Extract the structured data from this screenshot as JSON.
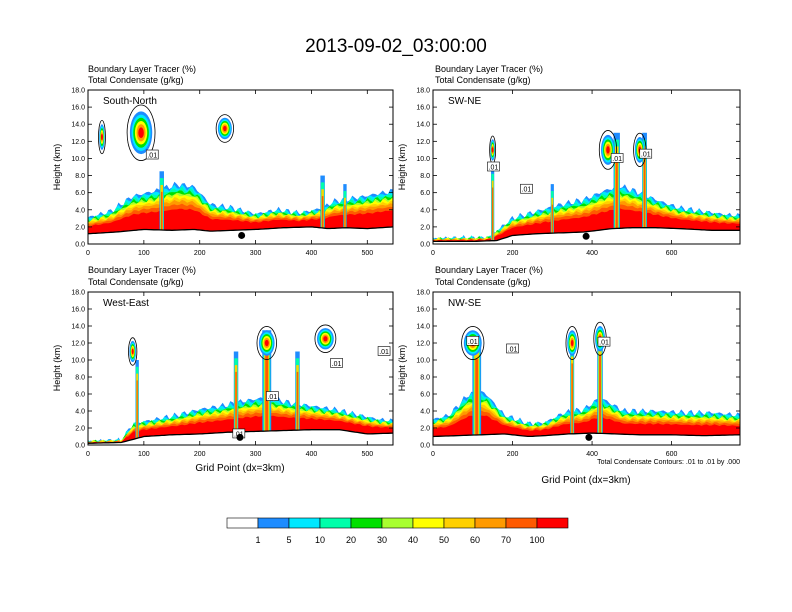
{
  "figure_title": "2013-09-02_03:00:00",
  "contour_note": "Total Condensate Contours: .01 to .01 by .000",
  "chart_data": [
    {
      "type": "heatmap",
      "panel_label": "South-North",
      "title_line1": "Boundary Layer Tracer   (%)",
      "title_line2": "Total Condensate   (g/kg)",
      "ylabel": "Height (km)",
      "xlabel": "",
      "xlim": [
        0,
        546
      ],
      "ylim": [
        0,
        18
      ],
      "xticks": [
        0,
        100,
        200,
        300,
        400,
        500
      ],
      "yticks": [
        "0.0",
        "2.0",
        "4.0",
        "6.0",
        "8.0",
        "10.0",
        "12.0",
        "14.0",
        "16.0",
        "18.0"
      ],
      "marker_x": 275,
      "marker_y": 1.0,
      "contour_labels": [
        {
          "text": ".01",
          "x": 115,
          "y": 10.4
        }
      ],
      "terrain": [
        [
          0,
          1.2
        ],
        [
          50,
          1.4
        ],
        [
          100,
          1.7
        ],
        [
          150,
          1.6
        ],
        [
          190,
          1.7
        ],
        [
          220,
          1.5
        ],
        [
          260,
          1.6
        ],
        [
          300,
          1.7
        ],
        [
          350,
          1.9
        ],
        [
          400,
          2.0
        ],
        [
          430,
          1.8
        ],
        [
          460,
          1.9
        ],
        [
          500,
          1.8
        ],
        [
          546,
          2.0
        ]
      ],
      "plume_top": [
        [
          0,
          3.1
        ],
        [
          40,
          3.8
        ],
        [
          80,
          5.6
        ],
        [
          120,
          6.2
        ],
        [
          160,
          7.0
        ],
        [
          190,
          6.7
        ],
        [
          220,
          4.6
        ],
        [
          260,
          4.2
        ],
        [
          300,
          3.5
        ],
        [
          340,
          4.0
        ],
        [
          380,
          3.6
        ],
        [
          420,
          4.2
        ],
        [
          440,
          5.0
        ],
        [
          480,
          5.4
        ],
        [
          520,
          5.9
        ],
        [
          546,
          6.2
        ]
      ],
      "clouds": [
        {
          "x": 25,
          "y": 12.5,
          "w": 10,
          "h": 3.0
        },
        {
          "x": 95,
          "y": 13.0,
          "w": 40,
          "h": 5.0
        },
        {
          "x": 245,
          "y": 13.5,
          "w": 25,
          "h": 2.5
        }
      ],
      "columns": [
        {
          "x": 132,
          "top": 8.5,
          "w": 8
        },
        {
          "x": 420,
          "top": 8.0,
          "w": 8
        },
        {
          "x": 460,
          "top": 7.0,
          "w": 6
        }
      ]
    },
    {
      "type": "heatmap",
      "panel_label": "SW-NE",
      "title_line1": "Boundary Layer Tracer   (%)",
      "title_line2": "Total Condensate   (g/kg)",
      "ylabel": "Height (km)",
      "xlabel": "",
      "xlim": [
        0,
        772
      ],
      "ylim": [
        0,
        18
      ],
      "xticks": [
        0,
        200,
        400,
        600
      ],
      "yticks": [
        "0.0",
        "2.0",
        "4.0",
        "6.0",
        "8.0",
        "10.0",
        "12.0",
        "14.0",
        "16.0",
        "18.0"
      ],
      "marker_x": 385,
      "marker_y": 0.9,
      "contour_labels": [
        {
          "text": ".01",
          "x": 152,
          "y": 9.0
        },
        {
          "text": ".01",
          "x": 235,
          "y": 6.4
        },
        {
          "text": ".01",
          "x": 463,
          "y": 10.0
        },
        {
          "text": ".01",
          "x": 535,
          "y": 10.5
        }
      ],
      "terrain": [
        [
          0,
          0.3
        ],
        [
          100,
          0.3
        ],
        [
          160,
          0.4
        ],
        [
          200,
          1.0
        ],
        [
          260,
          1.2
        ],
        [
          320,
          1.3
        ],
        [
          380,
          1.4
        ],
        [
          450,
          1.8
        ],
        [
          500,
          1.9
        ],
        [
          560,
          1.9
        ],
        [
          620,
          1.8
        ],
        [
          700,
          1.6
        ],
        [
          772,
          1.6
        ]
      ],
      "plume_top": [
        [
          0,
          0.6
        ],
        [
          140,
          0.7
        ],
        [
          160,
          1.5
        ],
        [
          200,
          3.0
        ],
        [
          260,
          3.8
        ],
        [
          320,
          4.6
        ],
        [
          380,
          5.2
        ],
        [
          430,
          6.2
        ],
        [
          470,
          6.8
        ],
        [
          520,
          6.0
        ],
        [
          570,
          5.0
        ],
        [
          620,
          4.2
        ],
        [
          680,
          3.8
        ],
        [
          740,
          3.4
        ],
        [
          772,
          3.3
        ]
      ],
      "clouds": [
        {
          "x": 150,
          "y": 11.0,
          "w": 12,
          "h": 2.5
        },
        {
          "x": 440,
          "y": 11.0,
          "w": 35,
          "h": 3.5
        },
        {
          "x": 520,
          "y": 11.0,
          "w": 25,
          "h": 3.0
        }
      ],
      "columns": [
        {
          "x": 150,
          "top": 9.0,
          "w": 8
        },
        {
          "x": 462,
          "top": 13.0,
          "w": 16
        },
        {
          "x": 532,
          "top": 13.0,
          "w": 12
        },
        {
          "x": 300,
          "top": 7.0,
          "w": 8
        }
      ]
    },
    {
      "type": "heatmap",
      "panel_label": "West-East",
      "title_line1": "Boundary Layer Tracer   (%)",
      "title_line2": "Total Condensate   (g/kg)",
      "ylabel": "Height (km)",
      "xlabel": "Grid Point (dx=3km)",
      "xlim": [
        0,
        546
      ],
      "ylim": [
        0,
        18
      ],
      "xticks": [
        0,
        100,
        200,
        300,
        400,
        500
      ],
      "yticks": [
        "0.0",
        "2.0",
        "4.0",
        "6.0",
        "8.0",
        "10.0",
        "12.0",
        "14.0",
        "16.0",
        "18.0"
      ],
      "marker_x": 272,
      "marker_y": 0.9,
      "contour_labels": [
        {
          "text": ".01",
          "x": 270,
          "y": 1.3
        },
        {
          "text": ".01",
          "x": 330,
          "y": 5.7
        },
        {
          "text": ".01",
          "x": 445,
          "y": 9.6
        },
        {
          "text": ".01",
          "x": 530,
          "y": 11.0
        }
      ],
      "terrain": [
        [
          0,
          0.2
        ],
        [
          60,
          0.3
        ],
        [
          100,
          1.0
        ],
        [
          150,
          1.2
        ],
        [
          200,
          1.3
        ],
        [
          250,
          1.5
        ],
        [
          300,
          1.6
        ],
        [
          350,
          1.7
        ],
        [
          400,
          1.8
        ],
        [
          450,
          1.8
        ],
        [
          500,
          1.3
        ],
        [
          546,
          1.4
        ]
      ],
      "plume_top": [
        [
          0,
          0.4
        ],
        [
          60,
          0.5
        ],
        [
          80,
          2.5
        ],
        [
          120,
          3.0
        ],
        [
          160,
          3.5
        ],
        [
          200,
          4.2
        ],
        [
          240,
          4.6
        ],
        [
          280,
          5.2
        ],
        [
          320,
          5.6
        ],
        [
          360,
          5.0
        ],
        [
          400,
          4.6
        ],
        [
          440,
          4.2
        ],
        [
          480,
          3.6
        ],
        [
          520,
          3.0
        ],
        [
          546,
          2.8
        ]
      ],
      "clouds": [
        {
          "x": 80,
          "y": 11.0,
          "w": 12,
          "h": 2.5
        },
        {
          "x": 320,
          "y": 12.0,
          "w": 28,
          "h": 3.0
        },
        {
          "x": 425,
          "y": 12.5,
          "w": 30,
          "h": 2.5
        }
      ],
      "columns": [
        {
          "x": 88,
          "top": 10.0,
          "w": 6
        },
        {
          "x": 320,
          "top": 13.5,
          "w": 16
        },
        {
          "x": 375,
          "top": 11.0,
          "w": 8
        },
        {
          "x": 265,
          "top": 11.0,
          "w": 8
        }
      ]
    },
    {
      "type": "heatmap",
      "panel_label": "NW-SE",
      "title_line1": "Boundary Layer Tracer   (%)",
      "title_line2": "Total Condensate   (g/kg)",
      "ylabel": "Height (km)",
      "xlabel": "Grid Point (dx=3km)",
      "xlim": [
        0,
        772
      ],
      "ylim": [
        0,
        18
      ],
      "xticks": [
        0,
        200,
        400,
        600
      ],
      "yticks": [
        "0.0",
        "2.0",
        "4.0",
        "6.0",
        "8.0",
        "10.0",
        "12.0",
        "14.0",
        "16.0",
        "18.0"
      ],
      "marker_x": 392,
      "marker_y": 0.9,
      "contour_labels": [
        {
          "text": ".01",
          "x": 100,
          "y": 12.2
        },
        {
          "text": ".01",
          "x": 200,
          "y": 11.3
        },
        {
          "text": ".01",
          "x": 430,
          "y": 12.1
        }
      ],
      "terrain": [
        [
          0,
          1.0
        ],
        [
          60,
          1.1
        ],
        [
          120,
          1.2
        ],
        [
          180,
          1.3
        ],
        [
          240,
          1.0
        ],
        [
          280,
          1.1
        ],
        [
          340,
          1.3
        ],
        [
          400,
          1.4
        ],
        [
          460,
          1.3
        ],
        [
          520,
          1.2
        ],
        [
          600,
          1.2
        ],
        [
          680,
          1.1
        ],
        [
          772,
          1.2
        ]
      ],
      "plume_top": [
        [
          0,
          3.0
        ],
        [
          40,
          3.5
        ],
        [
          90,
          6.0
        ],
        [
          130,
          6.2
        ],
        [
          180,
          3.5
        ],
        [
          240,
          2.5
        ],
        [
          280,
          2.6
        ],
        [
          330,
          3.8
        ],
        [
          380,
          4.2
        ],
        [
          420,
          5.6
        ],
        [
          480,
          4.0
        ],
        [
          560,
          4.0
        ],
        [
          640,
          3.8
        ],
        [
          700,
          3.8
        ],
        [
          772,
          3.5
        ]
      ],
      "clouds": [
        {
          "x": 100,
          "y": 12.0,
          "w": 45,
          "h": 3.0
        },
        {
          "x": 350,
          "y": 12.0,
          "w": 25,
          "h": 3.0
        },
        {
          "x": 420,
          "y": 12.5,
          "w": 25,
          "h": 3.0
        }
      ],
      "columns": [
        {
          "x": 110,
          "top": 12.5,
          "w": 22
        },
        {
          "x": 350,
          "top": 12.0,
          "w": 10
        },
        {
          "x": 420,
          "top": 13.0,
          "w": 14
        }
      ]
    }
  ],
  "colorbar": {
    "labels": [
      "1",
      "5",
      "10",
      "20",
      "30",
      "40",
      "50",
      "60",
      "70",
      "100"
    ],
    "colors": [
      "#ffffff",
      "#1e8cff",
      "#00e8ff",
      "#00ffaa",
      "#00e000",
      "#a8ff30",
      "#ffff00",
      "#ffd000",
      "#ff9a00",
      "#ff5a00",
      "#ff0000"
    ]
  }
}
